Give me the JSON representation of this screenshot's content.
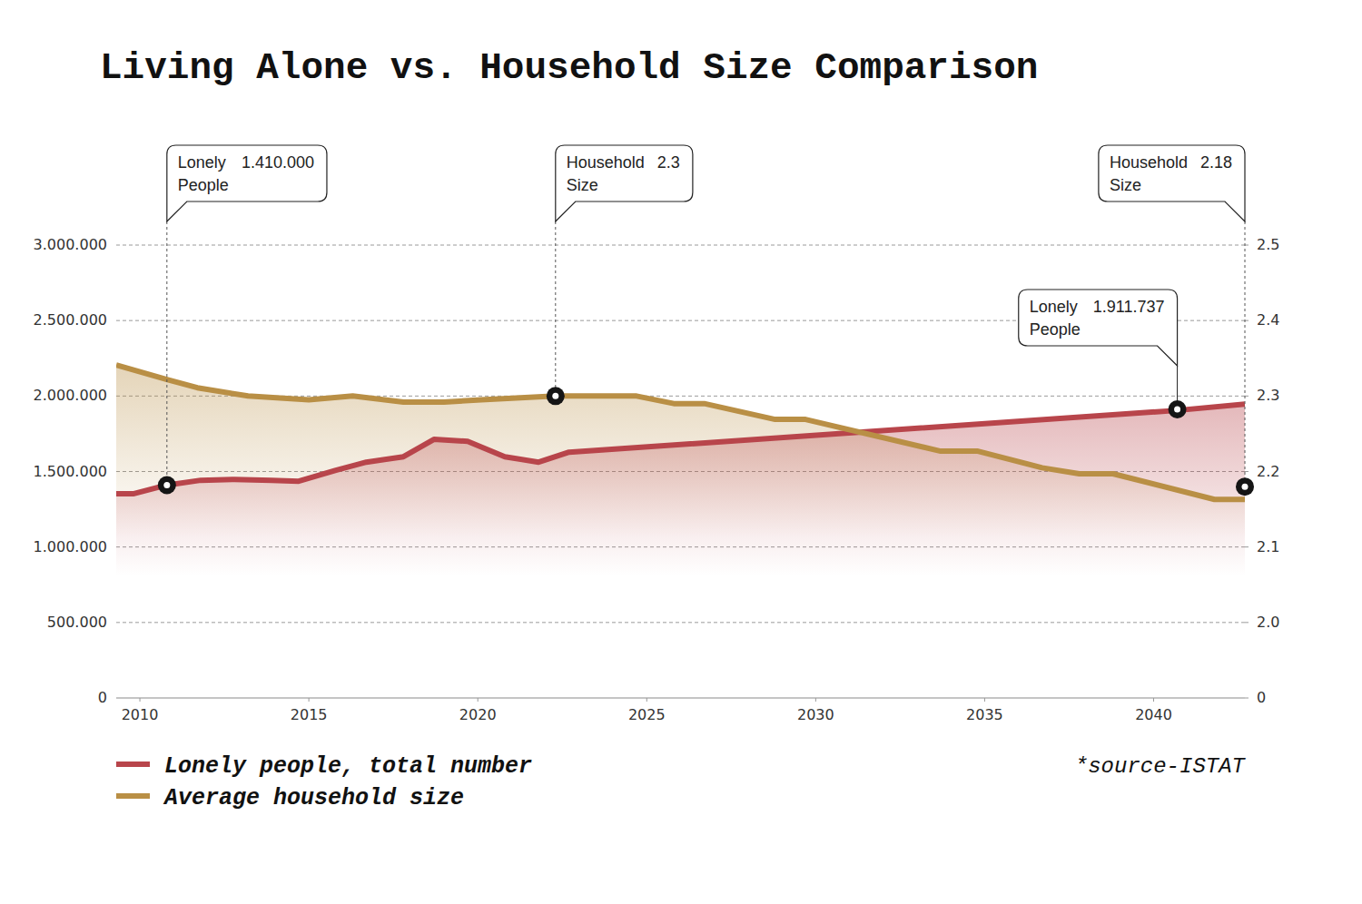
{
  "chart_data": {
    "type": "line",
    "title": "Living Alone vs. Household Size Comparison",
    "source": "*source-ISTAT",
    "xlim": [
      2009.3,
      2042.7
    ],
    "xticks": [
      2010,
      2015,
      2020,
      2025,
      2030,
      2035,
      2040
    ],
    "ylim": [
      0,
      3000000
    ],
    "yticks": [
      0,
      {
        "value": 500000,
        "label": "500.000"
      },
      {
        "value": 1000000,
        "label": "1.000.000"
      },
      {
        "value": 1500000,
        "label": "1.500.000"
      },
      {
        "value": 2000000,
        "label": "2.000.000"
      },
      {
        "value": 2500000,
        "label": "2.500.000"
      },
      {
        "value": 3000000,
        "label": "3.000.000"
      }
    ],
    "y2lim": [
      0,
      2.5
    ],
    "y2ticks": [
      0,
      {
        "value": 2,
        "label": "2.0"
      },
      2.1,
      2.2,
      2.3,
      2.4,
      2.5
    ],
    "grid": true,
    "legend": "bottom-left",
    "series": [
      {
        "name": "Lonely people, total number",
        "color": "#b8454b",
        "axis": "y",
        "x": [
          2009.3,
          2009.8,
          2010.8,
          2011.8,
          2012.8,
          2013.9,
          2014.7,
          2015.8,
          2016.7,
          2017.8,
          2018.7,
          2019.7,
          2020.8,
          2021.8,
          2022.7,
          2040.7,
          2042.7
        ],
        "values": [
          1352000,
          1352000,
          1410000,
          1442000,
          1448000,
          1442000,
          1436000,
          1508000,
          1562000,
          1598000,
          1713000,
          1700000,
          1598000,
          1562000,
          1628000,
          1905000,
          1947000
        ]
      },
      {
        "name": "Average household size",
        "color": "#b98f45",
        "axis": "y2",
        "x": [
          2009.3,
          2010.8,
          2011.7,
          2013.2,
          2015,
          2016.3,
          2017.8,
          2019,
          2020.1,
          2022.3,
          2024.7,
          2025.8,
          2026.7,
          2028.8,
          2029.7,
          2033.7,
          2034.8,
          2036.7,
          2037.8,
          2038.8,
          2041.8,
          2042.7
        ],
        "values": [
          2.341,
          2.322,
          2.311,
          2.3,
          2.295,
          2.3,
          2.292,
          2.292,
          2.295,
          2.3,
          2.3,
          2.29,
          2.29,
          2.269,
          2.269,
          2.227,
          2.227,
          2.205,
          2.197,
          2.197,
          2.163,
          2.163
        ]
      }
    ],
    "annotations": [
      {
        "label": "Lonely People",
        "x": 2010.8,
        "y": 1410000,
        "y_label": "1.410.000",
        "axis": "y"
      },
      {
        "label": "Household Size",
        "x": 2022.3,
        "y": 2.3,
        "axis": "y2"
      },
      {
        "label": "Household Size",
        "x": 2042.7,
        "y": 2.18,
        "axis": "y2"
      },
      {
        "label": "Lonely People",
        "x": 2040.7,
        "y": 1911737,
        "y_label": "1.911.737",
        "axis": "y"
      }
    ]
  }
}
